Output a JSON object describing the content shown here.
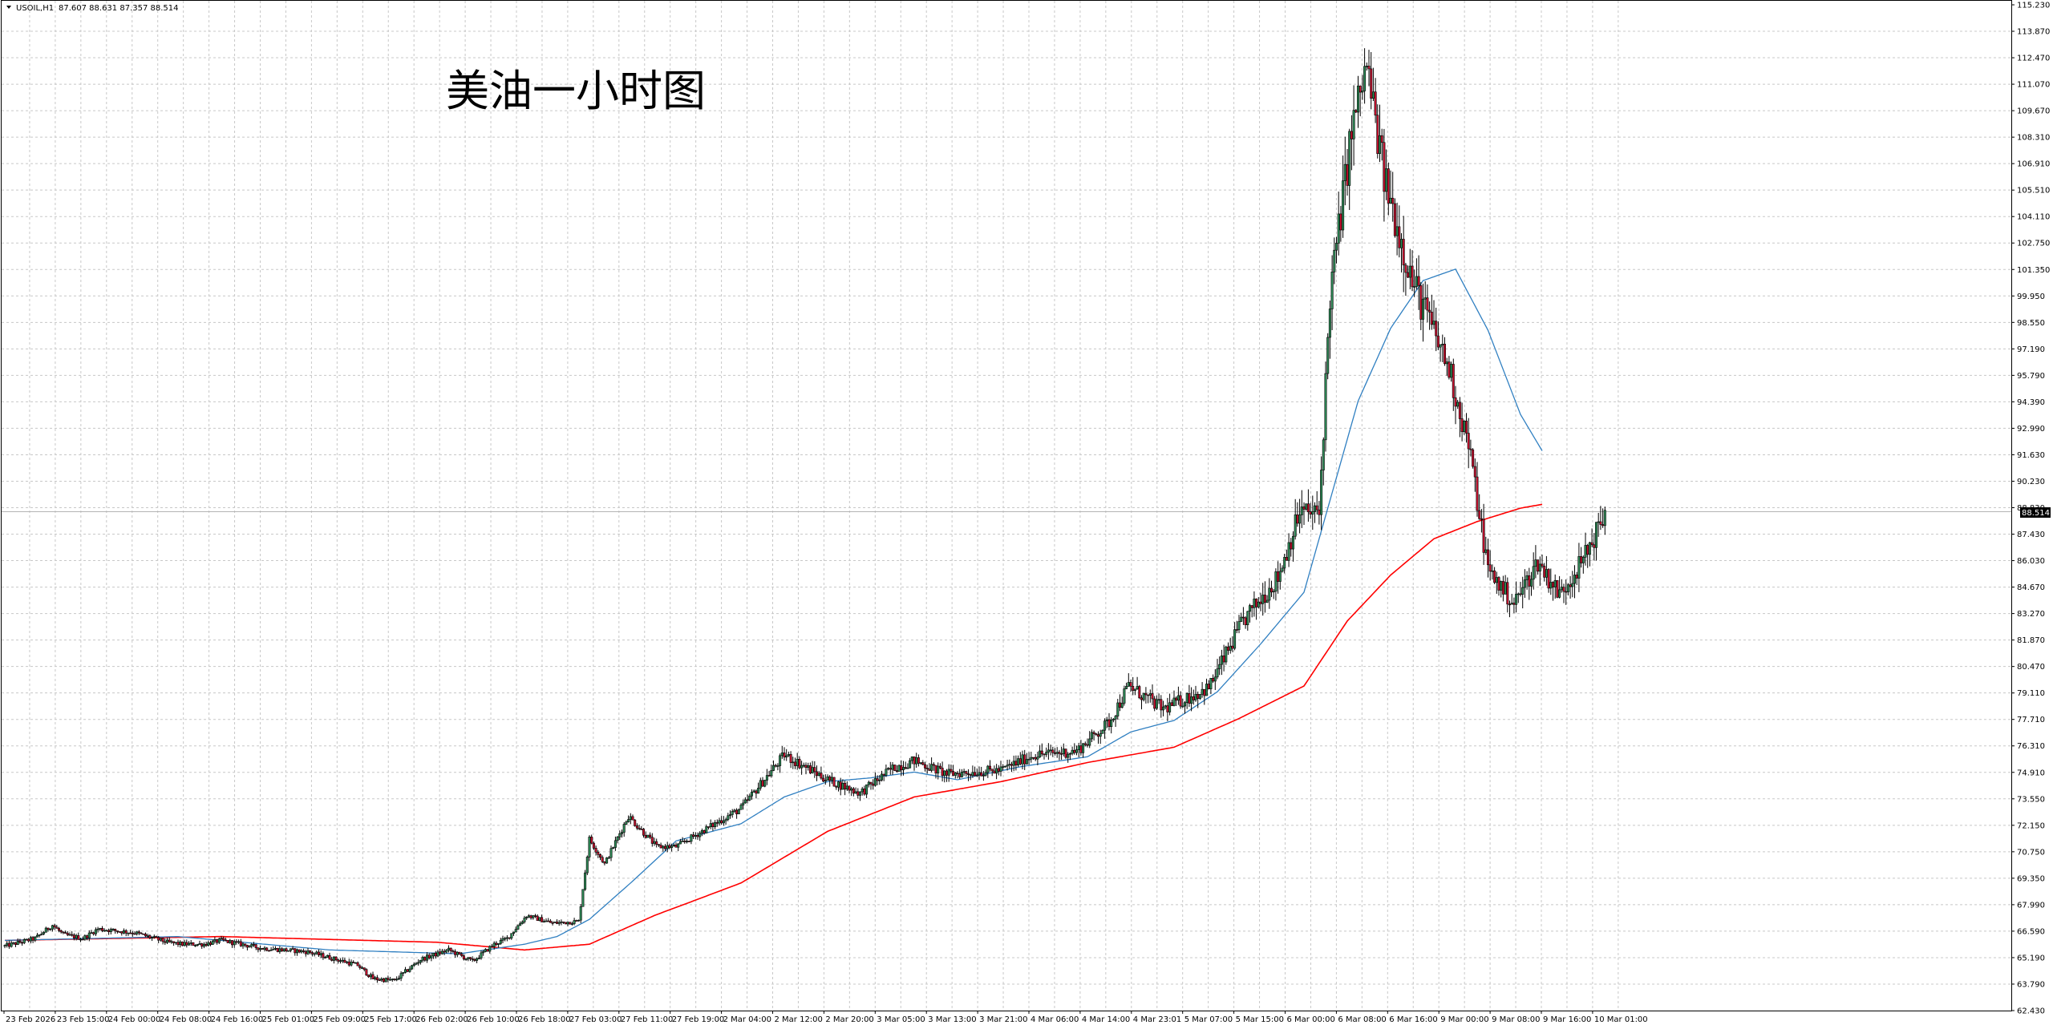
{
  "header": {
    "symbol": "USOIL,H1",
    "ohlc": "87.607 88.631 87.357 88.514"
  },
  "chart_data": {
    "type": "candlestick",
    "title": "美油一小时图",
    "ylim": [
      62.43,
      115.23
    ],
    "y_ticks": [
      "115.230",
      "113.870",
      "112.470",
      "111.070",
      "109.670",
      "108.310",
      "106.910",
      "105.510",
      "104.110",
      "102.750",
      "101.350",
      "99.950",
      "98.550",
      "97.190",
      "95.790",
      "94.390",
      "92.990",
      "91.630",
      "90.230",
      "88.830",
      "87.430",
      "86.030",
      "84.670",
      "83.270",
      "81.870",
      "80.470",
      "79.110",
      "77.710",
      "76.310",
      "74.910",
      "73.550",
      "72.150",
      "70.750",
      "69.350",
      "67.990",
      "66.590",
      "65.190",
      "63.790",
      "62.430"
    ],
    "x_ticks": [
      "23 Feb 2026",
      "23 Feb 15:00",
      "24 Feb 00:00",
      "24 Feb 08:00",
      "24 Feb 16:00",
      "25 Feb 01:00",
      "25 Feb 09:00",
      "25 Feb 17:00",
      "26 Feb 02:00",
      "26 Feb 10:00",
      "26 Feb 18:00",
      "27 Feb 03:00",
      "27 Feb 11:00",
      "27 Feb 19:00",
      "2 Mar 04:00",
      "2 Mar 12:00",
      "2 Mar 20:00",
      "3 Mar 05:00",
      "3 Mar 13:00",
      "3 Mar 21:00",
      "4 Mar 06:00",
      "4 Mar 14:00",
      "4 Mar 23:01",
      "5 Mar 07:00",
      "5 Mar 15:00",
      "6 Mar 00:00",
      "6 Mar 08:00",
      "6 Mar 16:00",
      "9 Mar 00:00",
      "9 Mar 08:00",
      "9 Mar 16:00",
      "10 Mar 01:00"
    ],
    "current_price": "88.514",
    "colors": {
      "bull": "#2e8b57",
      "bear": "#c8102e",
      "ma_fast": "#2f7fc1",
      "ma_slow": "#ff0000",
      "grid": "#c8c8c8"
    },
    "anchors": [
      [
        0,
        65.8
      ],
      [
        14,
        66.2
      ],
      [
        22,
        66.9
      ],
      [
        27,
        66.4
      ],
      [
        36,
        66.2
      ],
      [
        43,
        66.7
      ],
      [
        60,
        66.5
      ],
      [
        75,
        66.0
      ],
      [
        82,
        65.9
      ],
      [
        92,
        65.9
      ],
      [
        100,
        66.1
      ],
      [
        118,
        65.7
      ],
      [
        140,
        65.5
      ],
      [
        150,
        65.2
      ],
      [
        163,
        64.8
      ],
      [
        170,
        64.1
      ],
      [
        180,
        64.0
      ],
      [
        192,
        65.1
      ],
      [
        205,
        65.6
      ],
      [
        216,
        65.0
      ],
      [
        226,
        65.9
      ],
      [
        232,
        66.2
      ],
      [
        241,
        67.4
      ],
      [
        253,
        67.0
      ],
      [
        265,
        67.1
      ],
      [
        270,
        71.4
      ],
      [
        277,
        70.1
      ],
      [
        288,
        72.6
      ],
      [
        301,
        71.0
      ],
      [
        310,
        71.0
      ],
      [
        322,
        71.8
      ],
      [
        340,
        73.0
      ],
      [
        360,
        75.8
      ],
      [
        380,
        74.5
      ],
      [
        395,
        73.8
      ],
      [
        410,
        75.1
      ],
      [
        420,
        75.5
      ],
      [
        435,
        74.8
      ],
      [
        460,
        75.0
      ],
      [
        475,
        75.8
      ],
      [
        495,
        76.0
      ],
      [
        510,
        77.5
      ],
      [
        519,
        79.4
      ],
      [
        535,
        78.2
      ],
      [
        556,
        79.3
      ],
      [
        572,
        82.8
      ],
      [
        588,
        85.1
      ],
      [
        598,
        88.5
      ],
      [
        607,
        88.4
      ],
      [
        612,
        99.8
      ],
      [
        622,
        108.4
      ],
      [
        629,
        111.8
      ],
      [
        637,
        106.0
      ],
      [
        650,
        100.6
      ],
      [
        667,
        96.0
      ],
      [
        676,
        92.0
      ],
      [
        685,
        85.5
      ],
      [
        697,
        83.7
      ],
      [
        708,
        85.9
      ],
      [
        718,
        84.2
      ],
      [
        729,
        86.0
      ],
      [
        739,
        88.4
      ]
    ],
    "ma_fast_anchors": [
      [
        0,
        66.1
      ],
      [
        80,
        66.3
      ],
      [
        150,
        65.6
      ],
      [
        210,
        65.4
      ],
      [
        240,
        65.9
      ],
      [
        255,
        66.3
      ],
      [
        270,
        67.2
      ],
      [
        290,
        69.2
      ],
      [
        310,
        71.3
      ],
      [
        320,
        71.6
      ],
      [
        340,
        72.2
      ],
      [
        360,
        73.6
      ],
      [
        380,
        74.4
      ],
      [
        400,
        74.6
      ],
      [
        420,
        74.9
      ],
      [
        440,
        74.5
      ],
      [
        470,
        75.2
      ],
      [
        500,
        75.7
      ],
      [
        520,
        77.0
      ],
      [
        540,
        77.6
      ],
      [
        560,
        79.1
      ],
      [
        580,
        81.6
      ],
      [
        600,
        84.3
      ],
      [
        612,
        89.1
      ],
      [
        625,
        94.3
      ],
      [
        640,
        98.1
      ],
      [
        655,
        100.6
      ],
      [
        670,
        101.2
      ],
      [
        685,
        98.0
      ],
      [
        700,
        93.6
      ],
      [
        710,
        91.7
      ]
    ],
    "ma_slow_anchors": [
      [
        0,
        66.1
      ],
      [
        100,
        66.3
      ],
      [
        200,
        66.0
      ],
      [
        240,
        65.6
      ],
      [
        270,
        65.9
      ],
      [
        300,
        67.4
      ],
      [
        340,
        69.1
      ],
      [
        380,
        71.8
      ],
      [
        420,
        73.6
      ],
      [
        460,
        74.4
      ],
      [
        500,
        75.4
      ],
      [
        540,
        76.2
      ],
      [
        570,
        77.7
      ],
      [
        600,
        79.4
      ],
      [
        620,
        82.8
      ],
      [
        640,
        85.2
      ],
      [
        660,
        87.1
      ],
      [
        680,
        88.0
      ],
      [
        700,
        88.7
      ],
      [
        710,
        88.9
      ]
    ]
  }
}
